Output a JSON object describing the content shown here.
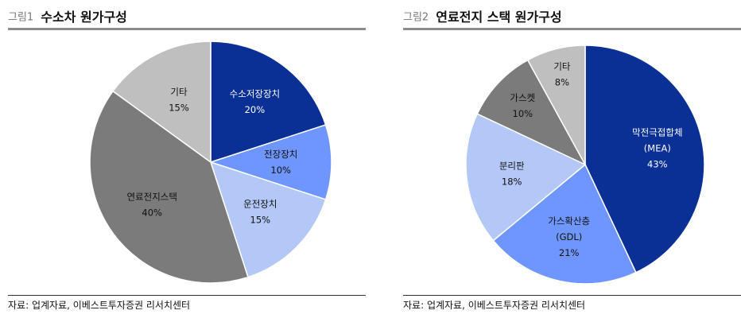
{
  "colors": {
    "navy": "#0a2f95",
    "mid_blue": "#6f96ff",
    "light_blue": "#b3c8f7",
    "dark_gray": "#7b7b7b",
    "light_gray": "#bfbfbf",
    "dark_label": "#111111",
    "white_label": "#ffffff"
  },
  "panels": [
    {
      "fig_num": "그림1",
      "title": "수소차 원가구성",
      "source": "자료: 업계자료, 이베스트투자증권 리서치센터"
    },
    {
      "fig_num": "그림2",
      "title": "연료전지 스택 원가구성",
      "source": "자료: 업계자료, 이베스트투자증권 리서치센터"
    }
  ],
  "chart_data": [
    {
      "type": "pie",
      "title": "수소차 원가구성",
      "start_angle": "12 o'clock",
      "direction": "clockwise",
      "slices": [
        {
          "label": "수소저장장치",
          "value": 20,
          "value_label": "20%",
          "color": "#0a2f95",
          "label_color": "#ffffff"
        },
        {
          "label": "전장장치",
          "value": 10,
          "value_label": "10%",
          "color": "#6f96ff",
          "label_color": "#111111"
        },
        {
          "label": "운전장치",
          "value": 15,
          "value_label": "15%",
          "color": "#b3c8f7",
          "label_color": "#111111"
        },
        {
          "label": "연료전지스택",
          "value": 40,
          "value_label": "40%",
          "color": "#7b7b7b",
          "label_color": "#111111"
        },
        {
          "label": "기타",
          "value": 15,
          "value_label": "15%",
          "color": "#bfbfbf",
          "label_color": "#111111"
        }
      ]
    },
    {
      "type": "pie",
      "title": "연료전지 스택 원가구성",
      "start_angle": "12 o'clock",
      "direction": "clockwise",
      "slices": [
        {
          "label": "막전극접합체",
          "sublabel": "(MEA)",
          "value": 43,
          "value_label": "43%",
          "color": "#0a2f95",
          "label_color": "#ffffff"
        },
        {
          "label": "가스확산층",
          "sublabel": "(GDL)",
          "value": 21,
          "value_label": "21%",
          "color": "#6f96ff",
          "label_color": "#111111"
        },
        {
          "label": "분리판",
          "value": 18,
          "value_label": "18%",
          "color": "#b3c8f7",
          "label_color": "#111111"
        },
        {
          "label": "가스켓",
          "value": 10,
          "value_label": "10%",
          "color": "#7b7b7b",
          "label_color": "#111111"
        },
        {
          "label": "기타",
          "value": 8,
          "value_label": "8%",
          "color": "#bfbfbf",
          "label_color": "#111111"
        }
      ]
    }
  ]
}
